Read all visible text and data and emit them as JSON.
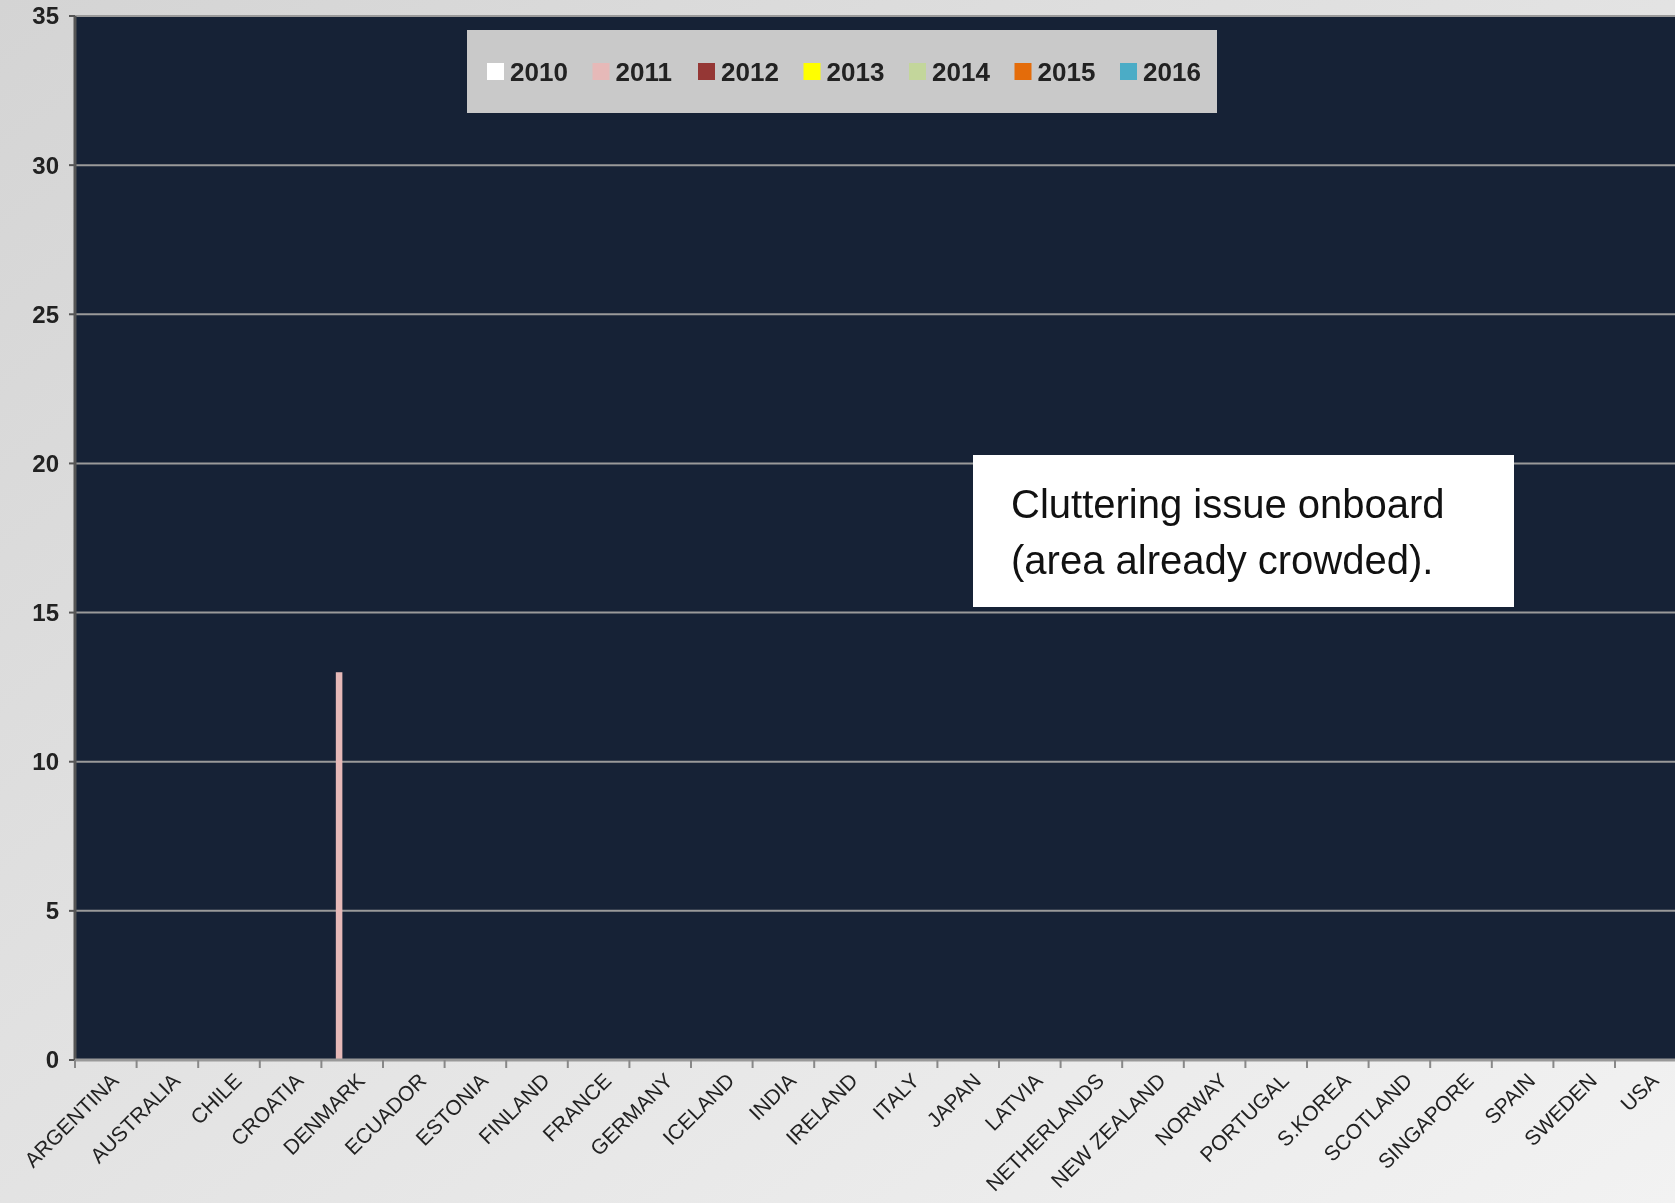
{
  "chart_data": {
    "type": "bar",
    "categories": [
      "ARGENTINA",
      "AUSTRALIA",
      "CHILE",
      "CROATIA",
      "DENMARK",
      "ECUADOR",
      "ESTONIA",
      "FINLAND",
      "FRANCE",
      "GERMANY",
      "ICELAND",
      "INDIA",
      "IRELAND",
      "ITALY",
      "JAPAN",
      "LATVIA",
      "NETHERLANDS",
      "NEW ZEALAND",
      "NORWAY",
      "PORTUGAL",
      "S.KOREA",
      "SCOTLAND",
      "SINGAPORE",
      "SPAIN",
      "SWEDEN",
      "USA"
    ],
    "series": [
      {
        "name": "2010",
        "color": "#ffffff",
        "values": [
          0,
          0,
          0,
          0,
          0,
          0,
          0,
          0,
          0,
          0,
          0,
          0,
          0,
          0,
          0,
          0,
          0,
          0,
          0,
          0,
          0,
          0,
          0,
          0,
          0,
          0
        ]
      },
      {
        "name": "2011",
        "color": "#e6b9b8",
        "values": [
          0,
          0,
          0,
          0,
          13,
          0,
          0,
          0,
          0,
          0,
          0,
          0,
          0,
          0,
          0,
          0,
          0,
          0,
          0,
          0,
          0,
          0,
          0,
          0,
          0,
          0
        ]
      },
      {
        "name": "2012",
        "color": "#953735",
        "values": [
          0,
          0,
          0,
          0,
          0,
          0,
          0,
          0,
          0,
          0,
          0,
          0,
          0,
          0,
          0,
          0,
          0,
          0,
          0,
          0,
          0,
          0,
          0,
          0,
          0,
          0
        ]
      },
      {
        "name": "2013",
        "color": "#ffff00",
        "values": [
          0,
          0,
          0,
          0,
          0,
          0,
          0,
          0,
          0,
          0,
          0,
          0,
          0,
          0,
          0,
          0,
          0,
          0,
          0,
          0,
          0,
          0,
          0,
          0,
          0,
          0
        ]
      },
      {
        "name": "2014",
        "color": "#c3d69b",
        "values": [
          0,
          0,
          0,
          0,
          0,
          0,
          0,
          0,
          0,
          0,
          0,
          0,
          0,
          0,
          0,
          0,
          0,
          0,
          0,
          0,
          0,
          0,
          0,
          0,
          0,
          0
        ]
      },
      {
        "name": "2015",
        "color": "#e46c0a",
        "values": [
          0,
          0,
          0,
          0,
          0,
          0,
          0,
          0,
          0,
          0,
          0,
          0,
          0,
          0,
          0,
          0,
          0,
          0,
          0,
          0,
          0,
          0,
          0,
          0,
          0,
          0
        ]
      },
      {
        "name": "2016",
        "color": "#4bacc6",
        "values": [
          0,
          0,
          0,
          0,
          0,
          0,
          0,
          0,
          0,
          0,
          0,
          0,
          0,
          0,
          0,
          0,
          0,
          0,
          0,
          0,
          0,
          0,
          0,
          0,
          0,
          0
        ]
      }
    ],
    "ylim": [
      0,
      35
    ],
    "yticks": [
      0,
      5,
      10,
      15,
      20,
      25,
      30,
      35
    ],
    "grid": "y",
    "legend": "top",
    "annotations": [
      "Cluttering issue onboard\n(area already crowded)."
    ]
  }
}
